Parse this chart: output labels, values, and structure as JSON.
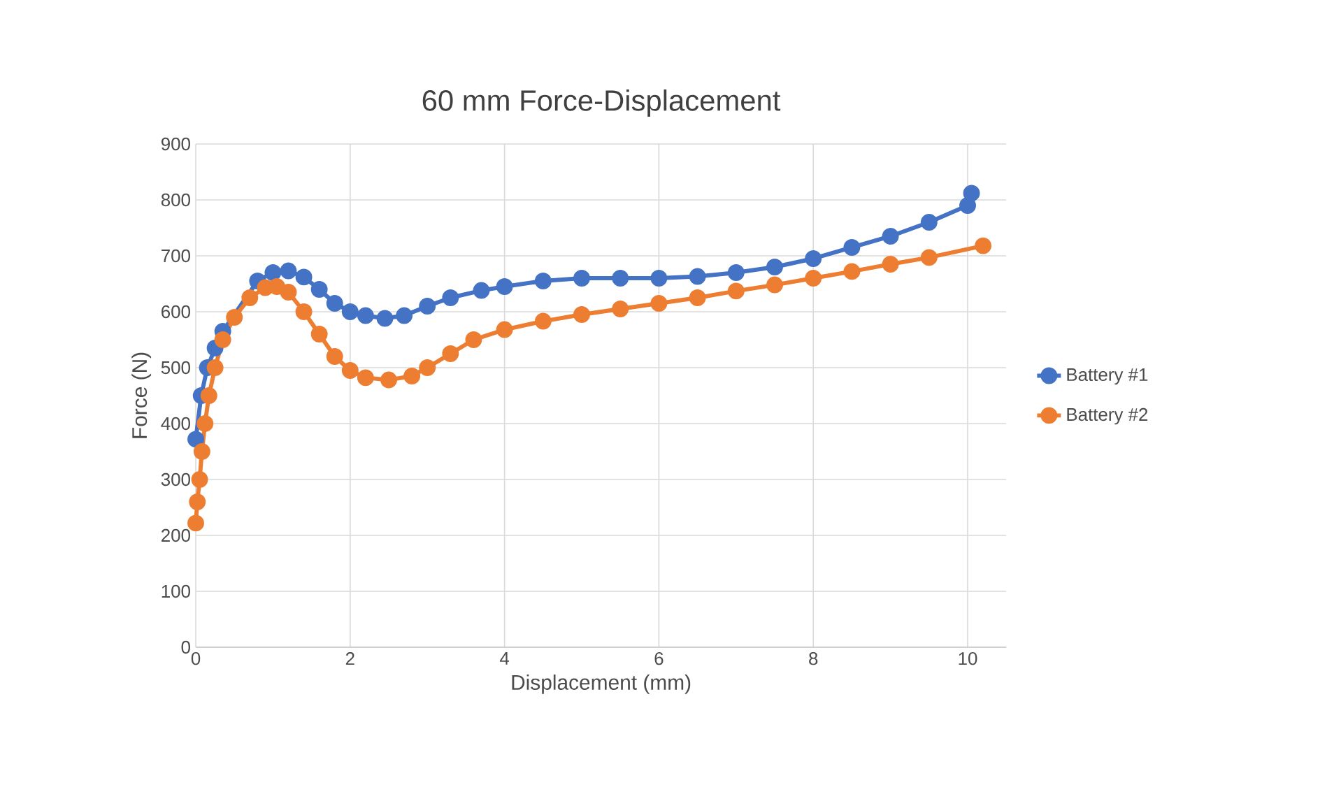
{
  "chart_data": {
    "type": "line",
    "title": "60 mm Force-Displacement",
    "xlabel": "Displacement (mm)",
    "ylabel": "Force (N)",
    "xlim": [
      0,
      10.5
    ],
    "xticks": [
      0,
      2,
      4,
      6,
      8,
      10
    ],
    "ylim": [
      0,
      900
    ],
    "yticks": [
      0,
      100,
      200,
      300,
      400,
      500,
      600,
      700,
      800,
      900
    ],
    "grid": true,
    "legend": "right",
    "marker": "circle",
    "series": [
      {
        "name": "Battery #1",
        "color": "#4472c4",
        "x": [
          0,
          0.07,
          0.15,
          0.25,
          0.35,
          0.8,
          1.0,
          1.2,
          1.4,
          1.6,
          1.8,
          2.0,
          2.2,
          2.45,
          2.7,
          3.0,
          3.3,
          3.7,
          4.0,
          4.5,
          5.0,
          5.5,
          6.0,
          6.5,
          7.0,
          7.5,
          8.0,
          8.5,
          9.0,
          9.5,
          10.0,
          10.05
        ],
        "values": [
          372,
          450,
          500,
          535,
          565,
          655,
          670,
          673,
          662,
          640,
          615,
          600,
          593,
          588,
          593,
          610,
          625,
          638,
          645,
          655,
          660,
          660,
          660,
          663,
          670,
          680,
          695,
          715,
          735,
          760,
          790,
          812
        ]
      },
      {
        "name": "Battery #2",
        "color": "#ed7d31",
        "x": [
          0,
          0.02,
          0.05,
          0.08,
          0.12,
          0.17,
          0.25,
          0.35,
          0.5,
          0.7,
          0.9,
          1.05,
          1.2,
          1.4,
          1.6,
          1.8,
          2.0,
          2.2,
          2.5,
          2.8,
          3.0,
          3.3,
          3.6,
          4.0,
          4.5,
          5.0,
          5.5,
          6.0,
          6.5,
          7.0,
          7.5,
          8.0,
          8.5,
          9.0,
          9.5,
          10.2
        ],
        "values": [
          222,
          260,
          300,
          350,
          400,
          450,
          500,
          550,
          590,
          625,
          643,
          645,
          635,
          600,
          560,
          520,
          495,
          482,
          478,
          485,
          500,
          525,
          550,
          568,
          583,
          595,
          605,
          615,
          625,
          637,
          648,
          660,
          672,
          685,
          697,
          718
        ]
      }
    ]
  }
}
